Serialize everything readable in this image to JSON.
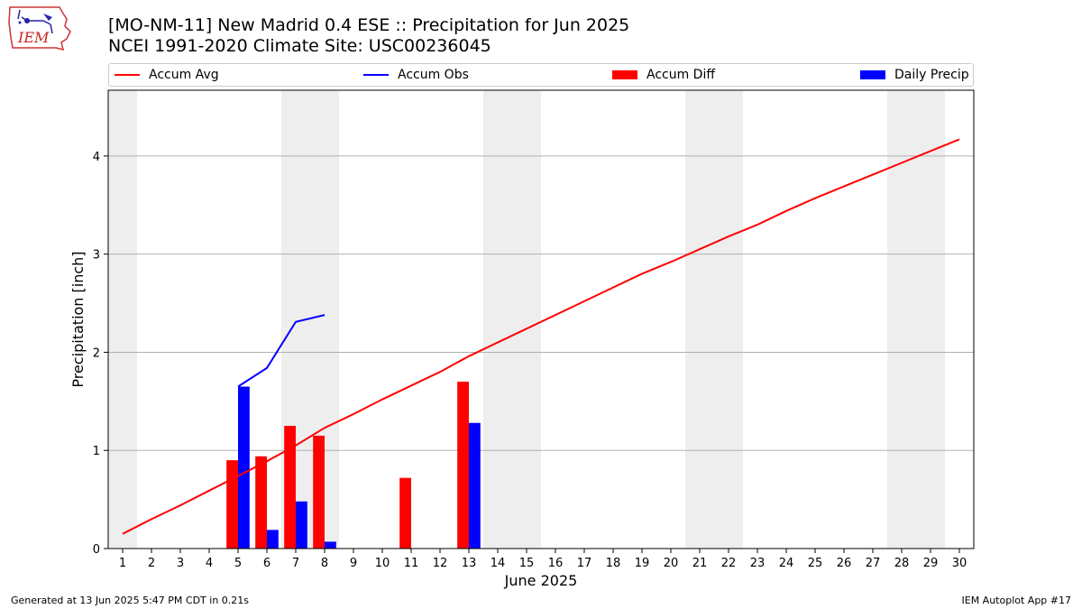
{
  "logo": {
    "text": "IEM"
  },
  "header": {
    "title_line1": "[MO-NM-11] New Madrid 0.4 ESE :: Precipitation for Jun 2025",
    "title_line2": "NCEI 1991-2020 Climate Site: USC00236045"
  },
  "legend": [
    {
      "label": "Accum Avg",
      "kind": "line",
      "color": "#ff0000"
    },
    {
      "label": "Accum Obs",
      "kind": "line",
      "color": "#0000ff"
    },
    {
      "label": "Accum Diff",
      "kind": "bar",
      "color": "#ff0000"
    },
    {
      "label": "Daily Precip",
      "kind": "bar",
      "color": "#0000ff"
    }
  ],
  "footer": {
    "left": "Generated at 13 Jun 2025 5:47 PM CDT in 0.21s",
    "right": "IEM Autoplot App #17"
  },
  "chart_data": {
    "type": "bar",
    "title": "[MO-NM-11] New Madrid 0.4 ESE :: Precipitation for Jun 2025",
    "subtitle": "NCEI 1991-2020 Climate Site: USC00236045",
    "xlabel": "June 2025",
    "ylabel": "Precipitation [inch]",
    "x": [
      1,
      2,
      3,
      4,
      5,
      6,
      7,
      8,
      9,
      10,
      11,
      12,
      13,
      14,
      15,
      16,
      17,
      18,
      19,
      20,
      21,
      22,
      23,
      24,
      25,
      26,
      27,
      28,
      29,
      30
    ],
    "xlim": [
      0.5,
      30.5
    ],
    "ylim": [
      0,
      4.67
    ],
    "yticks": [
      0,
      1,
      2,
      3,
      4
    ],
    "grid": "y",
    "weekend_shading": [
      [
        0.5,
        1.5
      ],
      [
        6.5,
        8.5
      ],
      [
        13.5,
        15.5
      ],
      [
        20.5,
        22.5
      ],
      [
        27.5,
        29.5
      ]
    ],
    "weekend_color": "#eeeeee",
    "legend_position": "top",
    "series": [
      {
        "name": "Accum Avg",
        "kind": "line",
        "color": "#ff0000",
        "x": [
          1,
          2,
          3,
          4,
          5,
          6,
          7,
          8,
          9,
          10,
          11,
          12,
          13,
          14,
          15,
          16,
          17,
          18,
          19,
          20,
          21,
          22,
          23,
          24,
          25,
          26,
          27,
          28,
          29,
          30
        ],
        "values": [
          0.15,
          0.3,
          0.44,
          0.59,
          0.74,
          0.89,
          1.05,
          1.23,
          1.37,
          1.52,
          1.66,
          1.8,
          1.96,
          2.1,
          2.24,
          2.38,
          2.52,
          2.66,
          2.8,
          2.92,
          3.05,
          3.18,
          3.3,
          3.44,
          3.57,
          3.69,
          3.81,
          3.93,
          4.05,
          4.17
        ]
      },
      {
        "name": "Accum Obs",
        "kind": "line",
        "color": "#0000ff",
        "x": [
          5,
          6,
          7,
          8
        ],
        "values": [
          1.65,
          1.84,
          2.31,
          2.38
        ]
      },
      {
        "name": "Accum Diff",
        "kind": "bar",
        "color": "#ff0000",
        "x": [
          5,
          6,
          7,
          8,
          11,
          13
        ],
        "values": [
          0.9,
          0.94,
          1.25,
          1.15,
          0.72,
          1.7
        ]
      },
      {
        "name": "Daily Precip",
        "kind": "bar",
        "color": "#0000ff",
        "x": [
          5,
          6,
          7,
          8,
          13
        ],
        "values": [
          1.65,
          0.19,
          0.48,
          0.07,
          1.28
        ]
      }
    ]
  }
}
